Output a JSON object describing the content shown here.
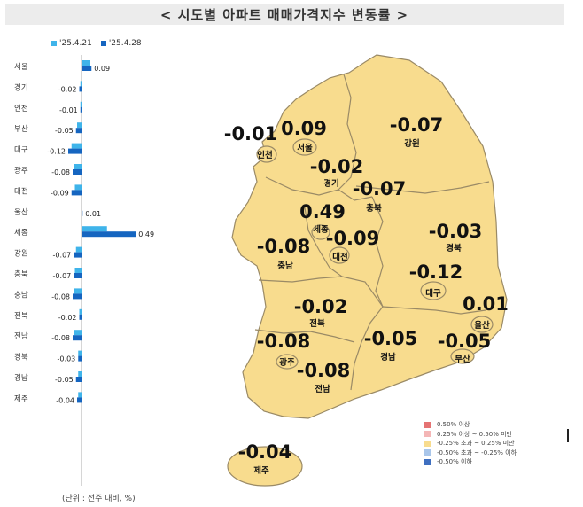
{
  "title": "< 시도별 아파트 매매가격지수 변동률 >",
  "legend_series": [
    {
      "label": "'25.4.21",
      "color": "#3fb4ea"
    },
    {
      "label": "'25.4.28",
      "color": "#1565c0"
    }
  ],
  "chart_data": {
    "type": "bar",
    "orientation": "horizontal",
    "categories": [
      "서울",
      "경기",
      "인천",
      "부산",
      "대구",
      "광주",
      "대전",
      "울산",
      "세종",
      "강원",
      "충북",
      "충남",
      "전북",
      "전남",
      "경북",
      "경남",
      "제주"
    ],
    "series": [
      {
        "name": "'25.4.21",
        "values": [
          0.08,
          -0.01,
          -0.01,
          -0.04,
          -0.09,
          -0.07,
          -0.06,
          0.0,
          0.23,
          -0.05,
          -0.06,
          -0.07,
          -0.02,
          -0.07,
          -0.03,
          -0.03,
          -0.03
        ]
      },
      {
        "name": "'25.4.28",
        "values": [
          0.09,
          -0.02,
          -0.01,
          -0.05,
          -0.12,
          -0.08,
          -0.09,
          0.01,
          0.49,
          -0.07,
          -0.07,
          -0.08,
          -0.02,
          -0.08,
          -0.03,
          -0.05,
          -0.04
        ]
      }
    ],
    "data_labels": [
      "0.09",
      "-0.02",
      "-0.01",
      "-0.05",
      "-0.12",
      "-0.08",
      "-0.09",
      "0.01",
      "0.49",
      "-0.07",
      "-0.07",
      "-0.08",
      "-0.02",
      "-0.08",
      "-0.03",
      "-0.05",
      "-0.04"
    ],
    "xlim": [
      -0.2,
      0.5
    ],
    "note": "(단위 : 전주 대비, %)"
  },
  "map_regions": [
    {
      "name": "인천",
      "value": "-0.01"
    },
    {
      "name": "서울",
      "value": "0.09"
    },
    {
      "name": "강원",
      "value": "-0.07"
    },
    {
      "name": "경기",
      "value": "-0.02"
    },
    {
      "name": "충북",
      "value": "-0.07"
    },
    {
      "name": "세종",
      "value": "0.49"
    },
    {
      "name": "대전",
      "value": "-0.09"
    },
    {
      "name": "경북",
      "value": "-0.03"
    },
    {
      "name": "충남",
      "value": "-0.08"
    },
    {
      "name": "대구",
      "value": "-0.12"
    },
    {
      "name": "울산",
      "value": "0.01"
    },
    {
      "name": "전북",
      "value": "-0.02"
    },
    {
      "name": "광주",
      "value": "-0.08"
    },
    {
      "name": "경남",
      "value": "-0.05"
    },
    {
      "name": "부산",
      "value": "-0.05"
    },
    {
      "name": "전남",
      "value": "-0.08"
    },
    {
      "name": "제주",
      "value": "-0.04"
    }
  ],
  "map_legend": [
    {
      "label": "0.50% 이상",
      "color": "#e57373"
    },
    {
      "label": "0.25% 이상 ~ 0.50% 미만",
      "color": "#f4b6b6"
    },
    {
      "label": "-0.25% 초과 ~ 0.25% 미만",
      "color": "#f8dc8e"
    },
    {
      "label": "-0.50% 초과 ~ -0.25% 이하",
      "color": "#a9c6ea"
    },
    {
      "label": "-0.50% 이하",
      "color": "#3f6fc0"
    }
  ],
  "colors": {
    "land": "#f8dc8e",
    "border": "#9a8a66"
  }
}
